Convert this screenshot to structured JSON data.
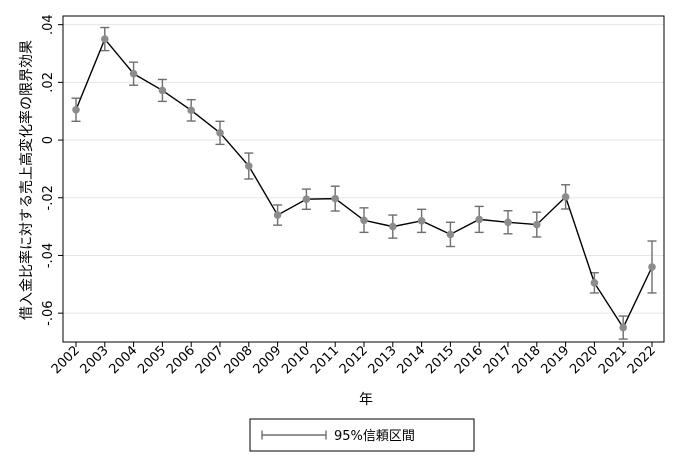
{
  "chart_data": {
    "type": "line",
    "title": "",
    "xlabel": "年",
    "ylabel": "借入金比率に対する売上高変化率の限界効果",
    "ylim": [
      -0.07,
      0.043
    ],
    "y_ticks": [
      ".04",
      ".02",
      "0",
      "-.02",
      "-.04",
      "-.06"
    ],
    "y_tick_values": [
      0.04,
      0.02,
      0,
      -0.02,
      -0.04,
      -0.06
    ],
    "grid": true,
    "legend_position": "bottom-center",
    "series": [
      {
        "x": [
          "2002",
          "2003",
          "2004",
          "2005",
          "2006",
          "2007",
          "2008",
          "2009",
          "2010",
          "2011",
          "2012",
          "2013",
          "2014",
          "2015",
          "2016",
          "2017",
          "2018",
          "2019",
          "2020",
          "2021",
          "2022"
        ],
        "values": [
          0.0105,
          0.035,
          0.023,
          0.0172,
          0.0103,
          0.0025,
          -0.009,
          -0.026,
          -0.0205,
          -0.0203,
          -0.0278,
          -0.03,
          -0.028,
          -0.0327,
          -0.0275,
          -0.0285,
          -0.0293,
          -0.0197,
          -0.0495,
          -0.065,
          -0.044
        ],
        "ci_upper": [
          0.0145,
          0.039,
          0.027,
          0.021,
          0.014,
          0.0065,
          -0.0045,
          -0.0225,
          -0.017,
          -0.016,
          -0.0235,
          -0.026,
          -0.024,
          -0.0285,
          -0.023,
          -0.0245,
          -0.025,
          -0.0155,
          -0.046,
          -0.061,
          -0.035
        ],
        "ci_lower": [
          0.0065,
          0.031,
          0.019,
          0.0134,
          0.0066,
          -0.0015,
          -0.0135,
          -0.0295,
          -0.024,
          -0.0246,
          -0.032,
          -0.034,
          -0.032,
          -0.0369,
          -0.032,
          -0.0325,
          -0.0336,
          -0.0239,
          -0.053,
          -0.069,
          -0.053
        ]
      }
    ],
    "legend": {
      "label": "95%信頼区間"
    },
    "colors": {
      "line": "#000000",
      "marker": "#8c8c8c",
      "ci": "#6e6e6e",
      "grid": "#e6e6e6",
      "axis": "#000000"
    }
  }
}
